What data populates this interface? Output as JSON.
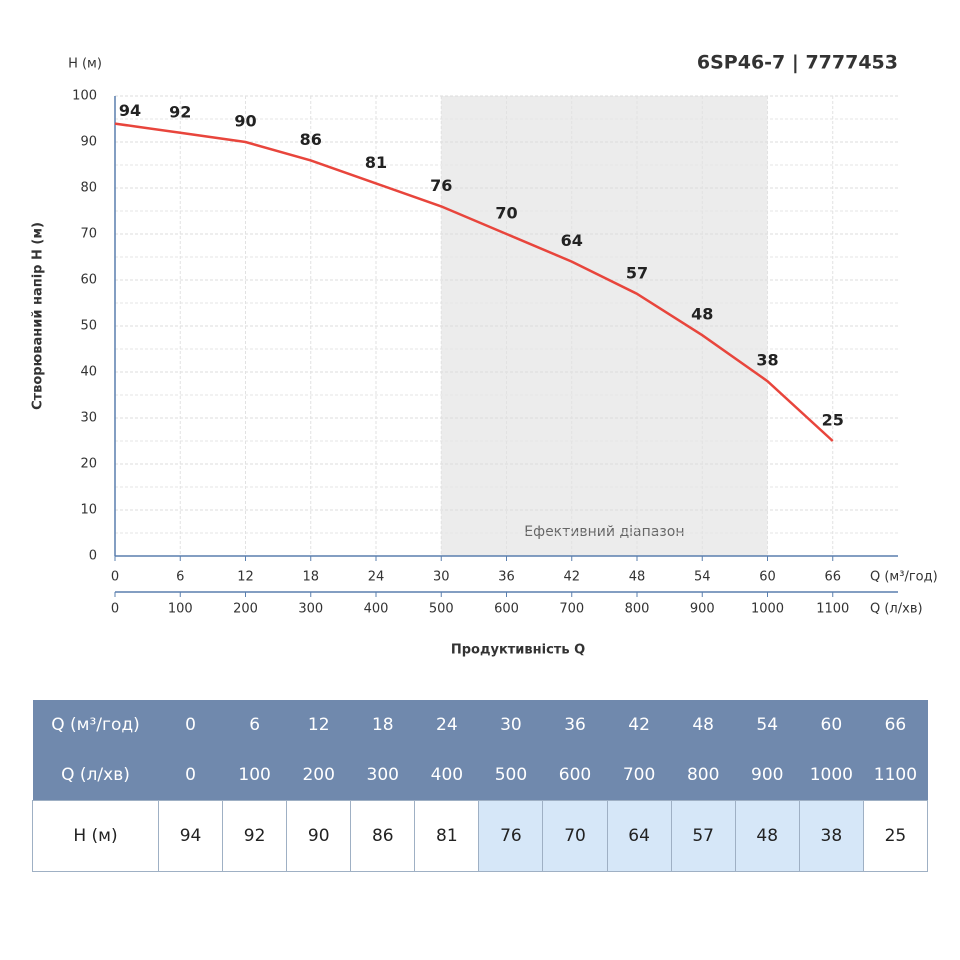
{
  "chart_data": {
    "type": "line",
    "title": "6SP46-7 | 7777453",
    "y_unit_label": "H (м)",
    "ylabel": "Створюваний напір H (м)",
    "xlabel": "Продуктивність Q",
    "x_unit_label": "Q (м³/год)",
    "x2_unit_label": "Q (л/хв)",
    "x": [
      0,
      6,
      12,
      18,
      24,
      30,
      36,
      42,
      48,
      54,
      60,
      66
    ],
    "series": [
      {
        "color": "#e8453c",
        "values": [
          94,
          92,
          90,
          86,
          81,
          76,
          70,
          64,
          57,
          48,
          38,
          25
        ]
      }
    ],
    "xlim": [
      0,
      72
    ],
    "xticks": [
      0,
      6,
      12,
      18,
      24,
      30,
      36,
      42,
      48,
      54,
      60,
      66
    ],
    "x2lim": [
      0,
      1200
    ],
    "x2ticks": [
      0,
      100,
      200,
      300,
      400,
      500,
      600,
      700,
      800,
      900,
      1000,
      1100
    ],
    "ylim": [
      0,
      100
    ],
    "yticks": [
      0,
      10,
      20,
      30,
      40,
      50,
      60,
      70,
      80,
      90,
      100
    ],
    "grid": true,
    "band": {
      "from": 30,
      "to": 60,
      "label": "Ефективний діапазон",
      "color": "#ececec"
    }
  },
  "table": {
    "rows": [
      {
        "header": "Q (м³/год)",
        "cells": [
          0,
          6,
          12,
          18,
          24,
          30,
          36,
          42,
          48,
          54,
          60,
          66
        ]
      },
      {
        "header": "Q (л/хв)",
        "cells": [
          0,
          100,
          200,
          300,
          400,
          500,
          600,
          700,
          800,
          900,
          1000,
          1100
        ]
      },
      {
        "header": "H (м)",
        "cells": [
          94,
          92,
          90,
          86,
          81,
          76,
          70,
          64,
          57,
          48,
          38,
          25
        ]
      }
    ]
  }
}
